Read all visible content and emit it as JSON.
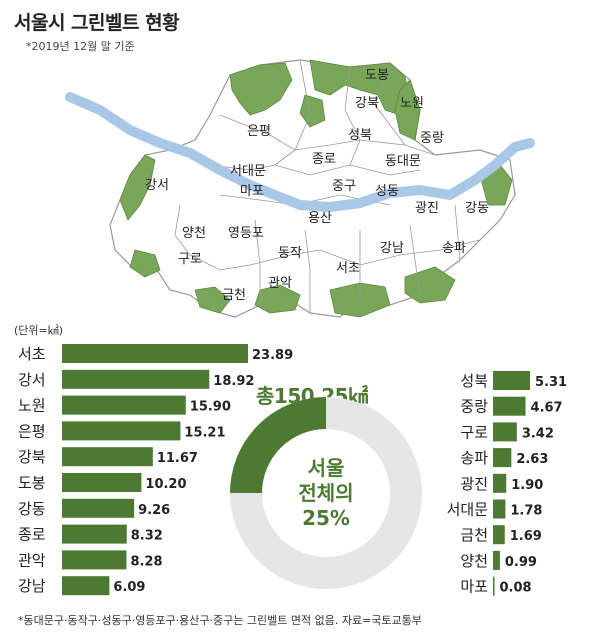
{
  "header": {
    "title": "서울시 그린벨트 현황",
    "subtitle": "*2019년 12월 말 기준"
  },
  "map": {
    "districts": [
      "도봉",
      "강북",
      "노원",
      "은평",
      "성북",
      "중랑",
      "종로",
      "동대문",
      "서대문",
      "마포",
      "중구",
      "성동",
      "강서",
      "광진",
      "강동",
      "용산",
      "양천",
      "영등포",
      "동작",
      "강남",
      "송파",
      "구로",
      "서초",
      "관악",
      "금천"
    ]
  },
  "colors": {
    "bar_green": "#4d7a33",
    "greenbelt": "#7aa65a",
    "river": "#a9c7e6",
    "donut_empty": "#e6e6e6"
  },
  "chart_data": [
    {
      "type": "bar",
      "orientation": "horizontal",
      "unit_label": "(단위=㎢)",
      "categories": [
        "서초",
        "강서",
        "노원",
        "은평",
        "강북",
        "도봉",
        "강동",
        "종로",
        "관악",
        "강남"
      ],
      "values": [
        23.89,
        18.92,
        15.9,
        15.21,
        11.67,
        10.2,
        9.26,
        8.32,
        8.28,
        6.09
      ],
      "value_labels": [
        "23.89",
        "18.92",
        "15.90",
        "15.21",
        "11.67",
        "10.20",
        "9.26",
        "8.32",
        "8.28",
        "6.09"
      ]
    },
    {
      "type": "bar",
      "orientation": "horizontal",
      "categories": [
        "성북",
        "중랑",
        "구로",
        "송파",
        "광진",
        "서대문",
        "금천",
        "양천",
        "마포"
      ],
      "values": [
        5.31,
        4.67,
        3.42,
        2.63,
        1.9,
        1.78,
        1.69,
        0.99,
        0.08
      ],
      "value_labels": [
        "5.31",
        "4.67",
        "3.42",
        "2.63",
        "1.90",
        "1.78",
        "1.69",
        "0.99",
        "0.08"
      ]
    },
    {
      "type": "pie",
      "total_label": "총150.25㎢",
      "center_lines": [
        "서울",
        "전체의",
        "25%"
      ],
      "values": [
        25,
        75
      ]
    }
  ],
  "footnote": "*동대문구·동작구·성동구·영등포구·용산구·중구는 그린벨트 면적 없음. 자료=국토교통부"
}
